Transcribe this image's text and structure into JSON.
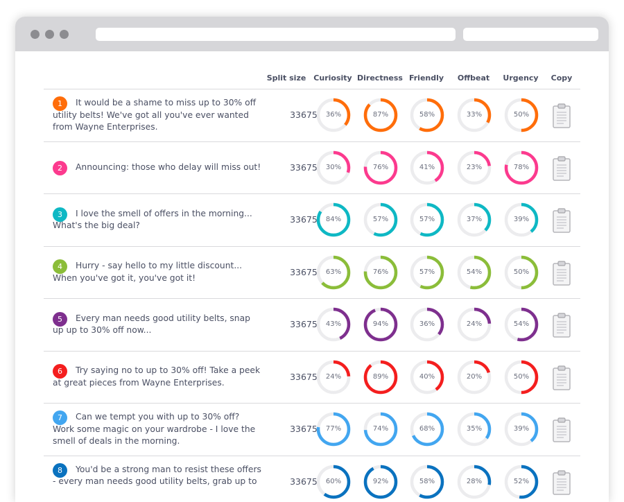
{
  "header": {
    "split_size": "Split size",
    "curiosity": "Curiosity",
    "directness": "Directness",
    "friendly": "Friendly",
    "offbeat": "Offbeat",
    "urgency": "Urgency",
    "copy": "Copy"
  },
  "rows": [
    {
      "num": "1",
      "color": "#ff6d0a",
      "text": "It would be a shame to miss up to 30% off utility belts! We've got all you've ever wanted from Wayne Enterprises.",
      "split": "33675",
      "scores": [
        36,
        87,
        58,
        33,
        50
      ]
    },
    {
      "num": "2",
      "color": "#fc3a8e",
      "text": "Announcing: those who delay will miss out!",
      "split": "33675",
      "scores": [
        30,
        76,
        41,
        23,
        78
      ]
    },
    {
      "num": "3",
      "color": "#0eb8c4",
      "text": "I love the smell of offers in the morning... What's the big deal?",
      "split": "33675",
      "scores": [
        84,
        57,
        57,
        37,
        39
      ]
    },
    {
      "num": "4",
      "color": "#8bbd39",
      "text": "Hurry - say hello to my little discount... When you've got it, you've got it!",
      "split": "33675",
      "scores": [
        63,
        76,
        57,
        54,
        50
      ]
    },
    {
      "num": "5",
      "color": "#7e2f8e",
      "text": "Every man needs good utility belts, snap up up to 30% off now...",
      "split": "33675",
      "scores": [
        43,
        94,
        36,
        24,
        54
      ]
    },
    {
      "num": "6",
      "color": "#f41e1e",
      "text": "Try saying no to up to 30% off! Take a peek at great pieces from Wayne Enterprises.",
      "split": "33675",
      "scores": [
        24,
        89,
        40,
        20,
        50
      ]
    },
    {
      "num": "7",
      "color": "#42a6f0",
      "text": "Can we tempt you with up to 30% off? Work some magic on your wardrobe - I love the smell of deals in the morning.",
      "split": "33675",
      "scores": [
        77,
        74,
        68,
        35,
        39
      ]
    },
    {
      "num": "8",
      "color": "#0a72bf",
      "text": "You'd be a strong man to resist these offers - every man needs good utility belts, grab up to",
      "split": "33675",
      "scores": [
        60,
        92,
        58,
        28,
        52
      ]
    }
  ]
}
